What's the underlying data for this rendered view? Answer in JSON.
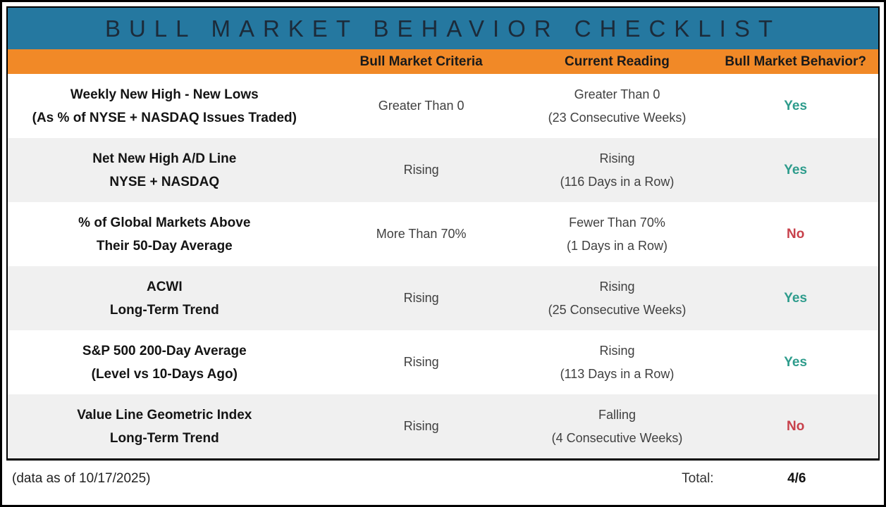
{
  "title": "BULL MARKET BEHAVIOR CHECKLIST",
  "colors": {
    "teal": "#2578A0",
    "orange": "#F18927",
    "title_navy": "#1C2B3A",
    "yes_green": "#2E9C8C",
    "no_red": "#C8414B",
    "row_gray": "#F0F0F0"
  },
  "header": {
    "indicator": "",
    "criteria": "Bull Market Criteria",
    "reading": "Current Reading",
    "behavior": "Bull Market Behavior?"
  },
  "rows": [
    {
      "indicator_line1": "Weekly New High - New Lows",
      "indicator_line2": "(As % of NYSE + NASDAQ Issues Traded)",
      "criteria": "Greater Than 0",
      "reading_line1": "Greater Than 0",
      "reading_line2": "(23 Consecutive Weeks)",
      "behavior": "Yes"
    },
    {
      "indicator_line1": "Net New High A/D Line",
      "indicator_line2": "NYSE + NASDAQ",
      "criteria": "Rising",
      "reading_line1": "Rising",
      "reading_line2": "(116 Days in a Row)",
      "behavior": "Yes"
    },
    {
      "indicator_line1": "% of Global Markets Above",
      "indicator_line2": "Their 50-Day Average",
      "criteria": "More Than 70%",
      "reading_line1": "Fewer Than 70%",
      "reading_line2": "(1 Days in a Row)",
      "behavior": "No"
    },
    {
      "indicator_line1": "ACWI",
      "indicator_line2": "Long-Term Trend",
      "criteria": "Rising",
      "reading_line1": "Rising",
      "reading_line2": "(25 Consecutive Weeks)",
      "behavior": "Yes"
    },
    {
      "indicator_line1": "S&P 500 200-Day Average",
      "indicator_line2": "(Level vs 10-Days Ago)",
      "criteria": "Rising",
      "reading_line1": "Rising",
      "reading_line2": "(113 Days in a Row)",
      "behavior": "Yes"
    },
    {
      "indicator_line1": "Value Line Geometric Index",
      "indicator_line2": "Long-Term Trend",
      "criteria": "Rising",
      "reading_line1": "Falling",
      "reading_line2": "(4 Consecutive Weeks)",
      "behavior": "No"
    }
  ],
  "footer": {
    "note": "(data as of 10/17/2025)",
    "total_label": "Total:",
    "total_value": "4/6"
  },
  "chart_data": {
    "type": "table",
    "title": "BULL MARKET BEHAVIOR CHECKLIST",
    "columns": [
      "Indicator",
      "Bull Market Criteria",
      "Current Reading",
      "Bull Market Behavior?"
    ],
    "rows": [
      [
        "Weekly New High - New Lows (As % of NYSE + NASDAQ Issues Traded)",
        "Greater Than 0",
        "Greater Than 0 (23 Consecutive Weeks)",
        "Yes"
      ],
      [
        "Net New High A/D Line NYSE + NASDAQ",
        "Rising",
        "Rising (116 Days in a Row)",
        "Yes"
      ],
      [
        "% of Global Markets Above Their 50-Day Average",
        "More Than 70%",
        "Fewer Than 70% (1 Days in a Row)",
        "No"
      ],
      [
        "ACWI Long-Term Trend",
        "Rising",
        "Rising (25 Consecutive Weeks)",
        "Yes"
      ],
      [
        "S&P 500 200-Day Average (Level vs 10-Days Ago)",
        "Rising",
        "Rising (113 Days in a Row)",
        "Yes"
      ],
      [
        "Value Line Geometric Index Long-Term Trend",
        "Rising",
        "Falling (4 Consecutive Weeks)",
        "No"
      ]
    ],
    "note": "(data as of 10/17/2025)",
    "total": "4/6"
  }
}
